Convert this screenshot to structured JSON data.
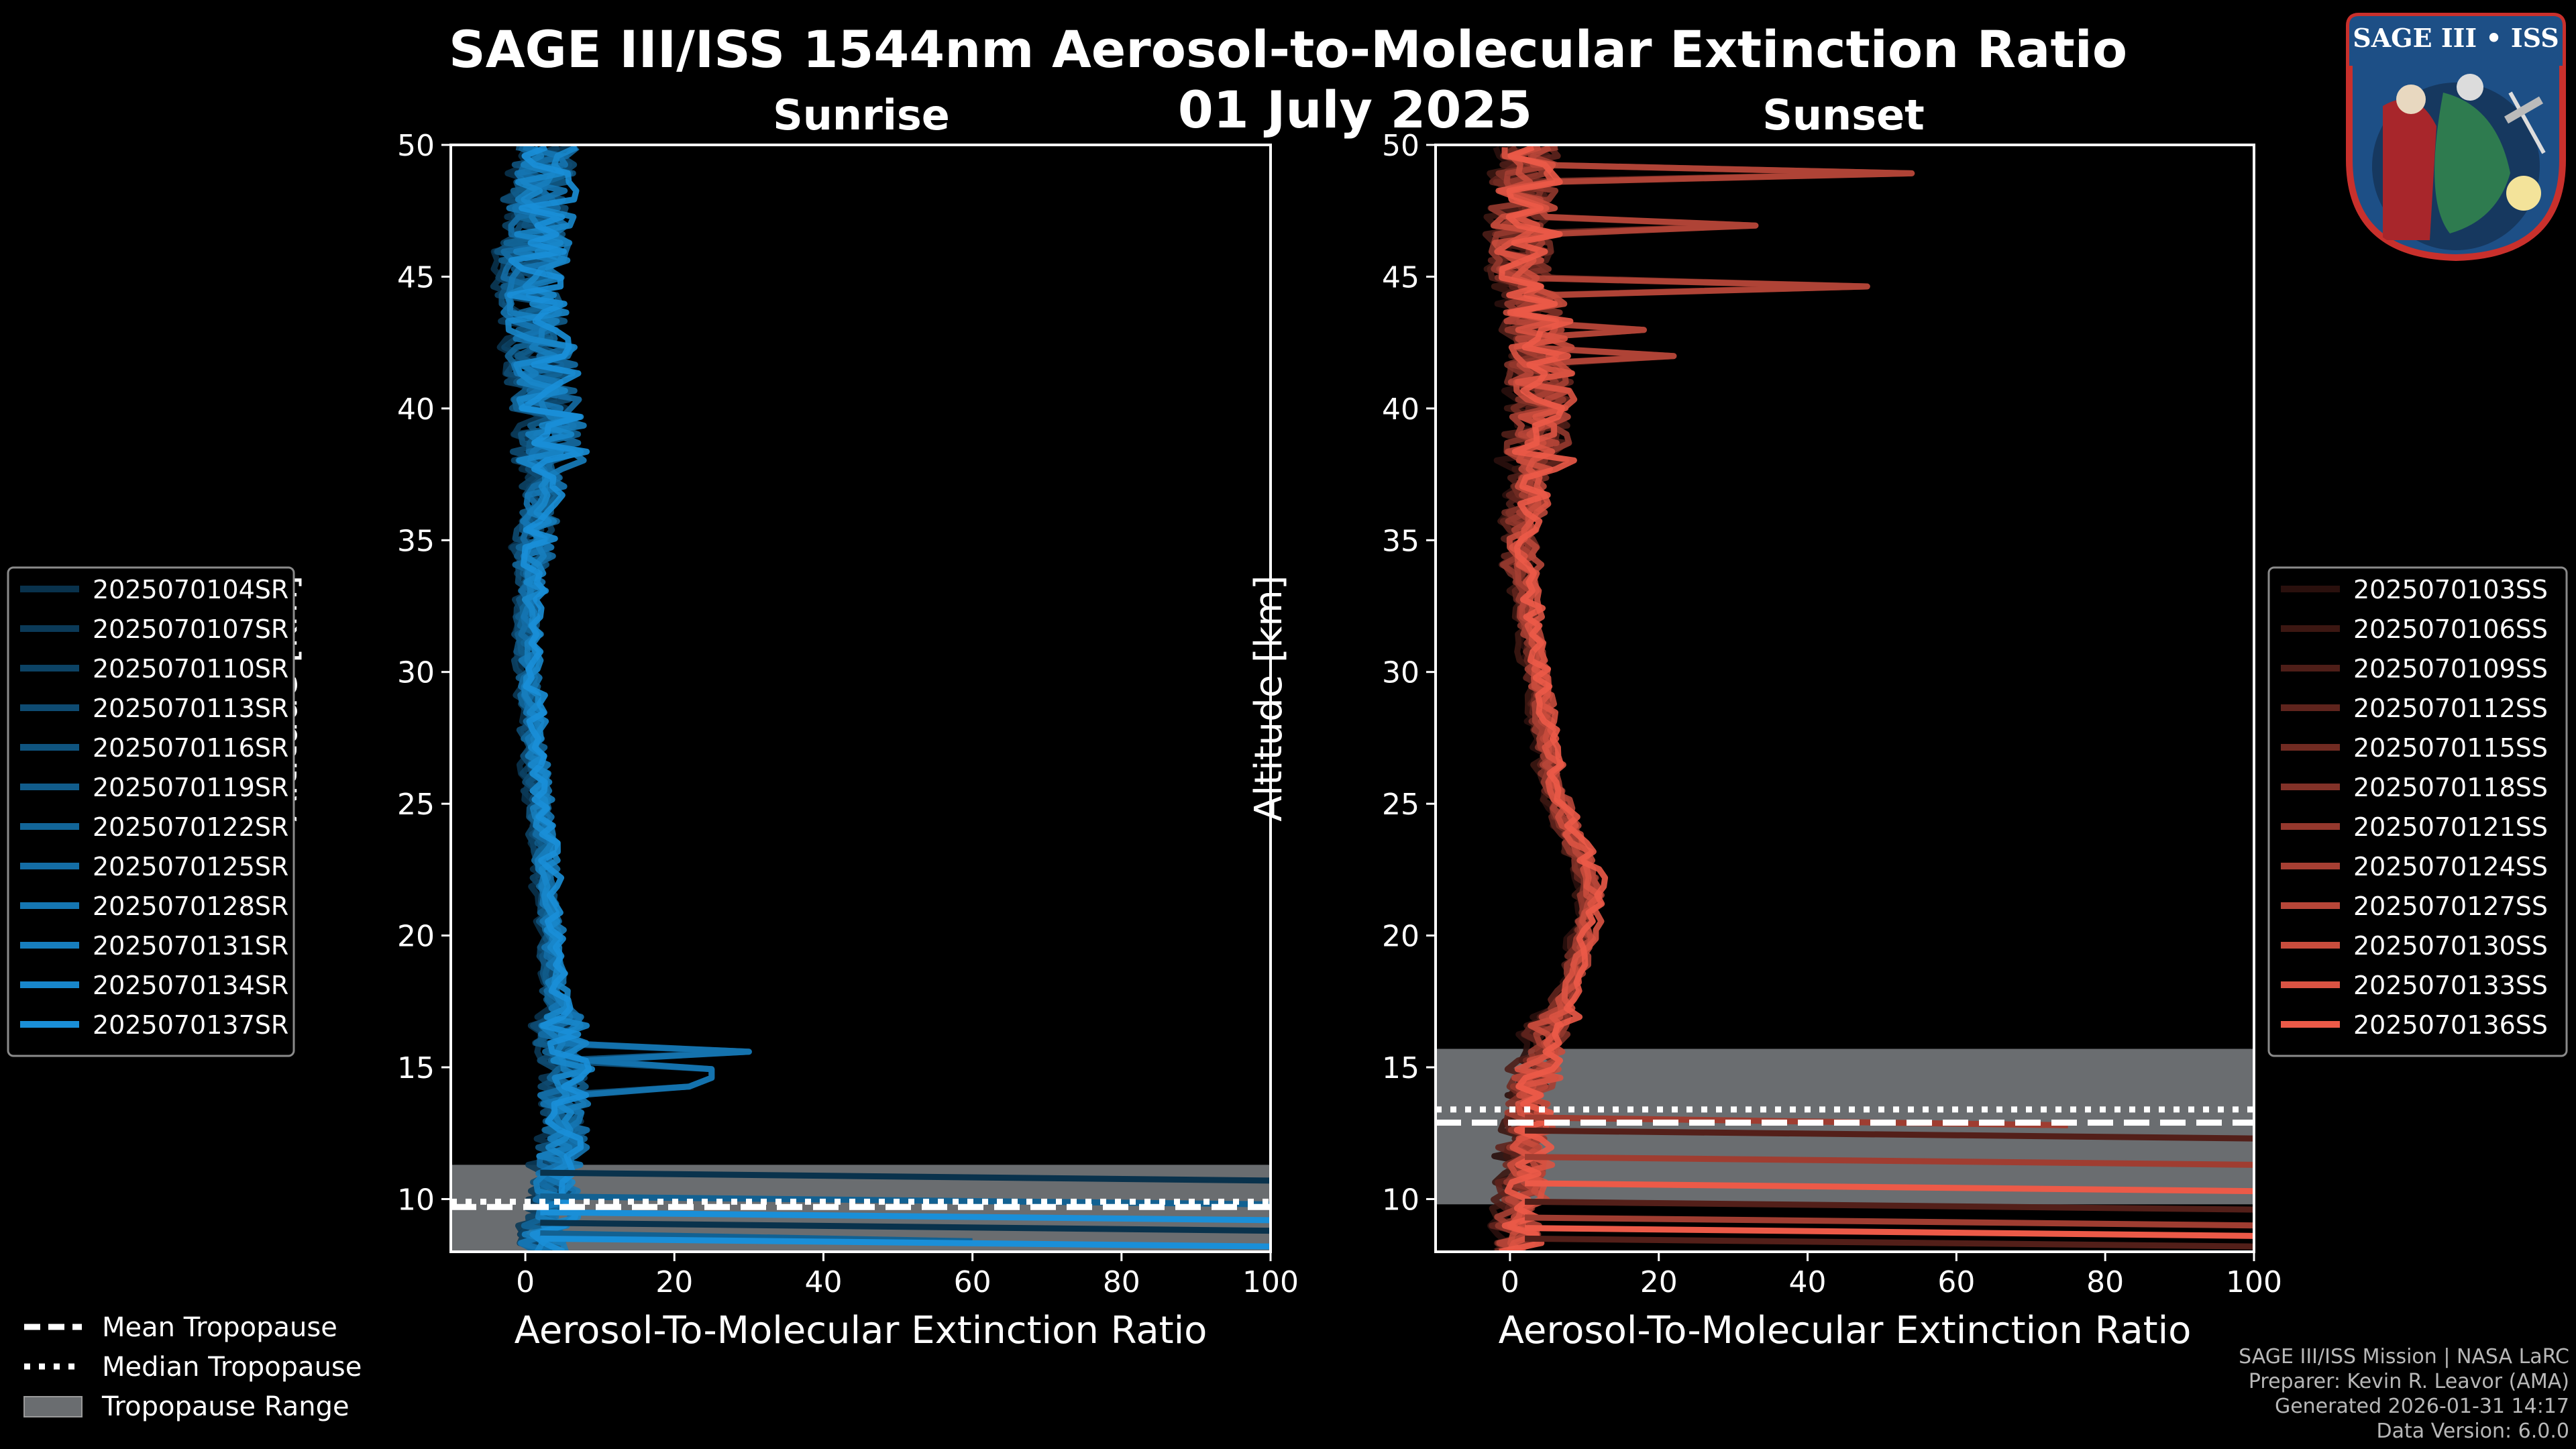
{
  "title": "SAGE III/ISS 1544nm Aerosol-to-Molecular Extinction Ratio",
  "date": "01 July 2025",
  "logo": {
    "text": "SAGE III • ISS"
  },
  "colors": {
    "background": "#000000",
    "sunrise": "#1a8fd8",
    "sunset": "#ec5a48",
    "tropopause_range": "#6a6d70"
  },
  "footer": {
    "mission": "SAGE III/ISS Mission | NASA LaRC",
    "preparer": "Preparer: Kevin R. Leavor (AMA)",
    "generated": "Generated 2026-01-31 14:17",
    "version": "Data Version: 6.0.0"
  },
  "tropo_legend": [
    {
      "label": "Mean Tropopause",
      "style": "dashed"
    },
    {
      "label": "Median Tropopause",
      "style": "dotted"
    },
    {
      "label": "Tropopause Range",
      "style": "patch"
    }
  ],
  "chart_data": [
    {
      "type": "line",
      "title": "Sunrise",
      "xlabel": "Aerosol-To-Molecular Extinction Ratio",
      "ylabel": "Altitude [km]",
      "xlim": [
        -10,
        100
      ],
      "ylim": [
        8,
        50
      ],
      "xticks": [
        0,
        20,
        40,
        60,
        80,
        100
      ],
      "yticks": [
        10,
        15,
        20,
        25,
        30,
        35,
        40,
        45,
        50
      ],
      "legend_position": "left",
      "tropopause": {
        "mean": 9.7,
        "median": 9.9,
        "range": [
          8.0,
          11.3
        ]
      },
      "profile": {
        "altitude": [
          8,
          9,
          10,
          11,
          12,
          13,
          14,
          15,
          16,
          17,
          18,
          20,
          22,
          24,
          26,
          28,
          30,
          32,
          34,
          36,
          38,
          40,
          42,
          44,
          46,
          48,
          50
        ],
        "ratio": [
          2,
          3,
          4,
          4,
          5,
          5.5,
          5,
          6,
          4.5,
          4.5,
          4,
          3.5,
          2.8,
          2.2,
          1.5,
          1.0,
          0.5,
          0.5,
          1.0,
          2.0,
          3.0,
          3.0,
          2.0,
          0.5,
          1.0,
          2.0,
          3.0
        ]
      },
      "series": [
        {
          "name": "2025070104SR"
        },
        {
          "name": "2025070107SR"
        },
        {
          "name": "2025070110SR"
        },
        {
          "name": "2025070113SR"
        },
        {
          "name": "2025070116SR"
        },
        {
          "name": "2025070119SR"
        },
        {
          "name": "2025070122SR"
        },
        {
          "name": "2025070125SR"
        },
        {
          "name": "2025070128SR"
        },
        {
          "name": "2025070131SR"
        },
        {
          "name": "2025070134SR"
        },
        {
          "name": "2025070137SR"
        }
      ]
    },
    {
      "type": "line",
      "title": "Sunset",
      "xlabel": "Aerosol-To-Molecular Extinction Ratio",
      "ylabel": "Altitude [km]",
      "xlim": [
        -10,
        100
      ],
      "ylim": [
        8,
        50
      ],
      "xticks": [
        0,
        20,
        40,
        60,
        80,
        100
      ],
      "yticks": [
        10,
        15,
        20,
        25,
        30,
        35,
        40,
        45,
        50
      ],
      "legend_position": "right",
      "tropopause": {
        "mean": 12.9,
        "median": 13.4,
        "range": [
          9.8,
          15.7
        ]
      },
      "profile": {
        "altitude": [
          8,
          9,
          10,
          11,
          12,
          13,
          14,
          15,
          16,
          17,
          18,
          20,
          22,
          24,
          26,
          28,
          30,
          32,
          34,
          36,
          38,
          40,
          42,
          44,
          46,
          48,
          50
        ],
        "ratio": [
          1,
          1,
          1.5,
          2,
          2,
          2.5,
          3,
          3.5,
          4.5,
          6,
          8,
          10,
          11,
          8,
          5.5,
          4.5,
          3.5,
          2.5,
          1.5,
          2.0,
          3.5,
          4.5,
          4.0,
          3.0,
          1.5,
          2.0,
          3.0
        ]
      },
      "series": [
        {
          "name": "2025070103SS"
        },
        {
          "name": "2025070106SS"
        },
        {
          "name": "2025070109SS"
        },
        {
          "name": "2025070112SS"
        },
        {
          "name": "2025070115SS"
        },
        {
          "name": "2025070118SS"
        },
        {
          "name": "2025070121SS"
        },
        {
          "name": "2025070124SS"
        },
        {
          "name": "2025070127SS"
        },
        {
          "name": "2025070130SS"
        },
        {
          "name": "2025070133SS"
        },
        {
          "name": "2025070136SS"
        }
      ]
    }
  ]
}
